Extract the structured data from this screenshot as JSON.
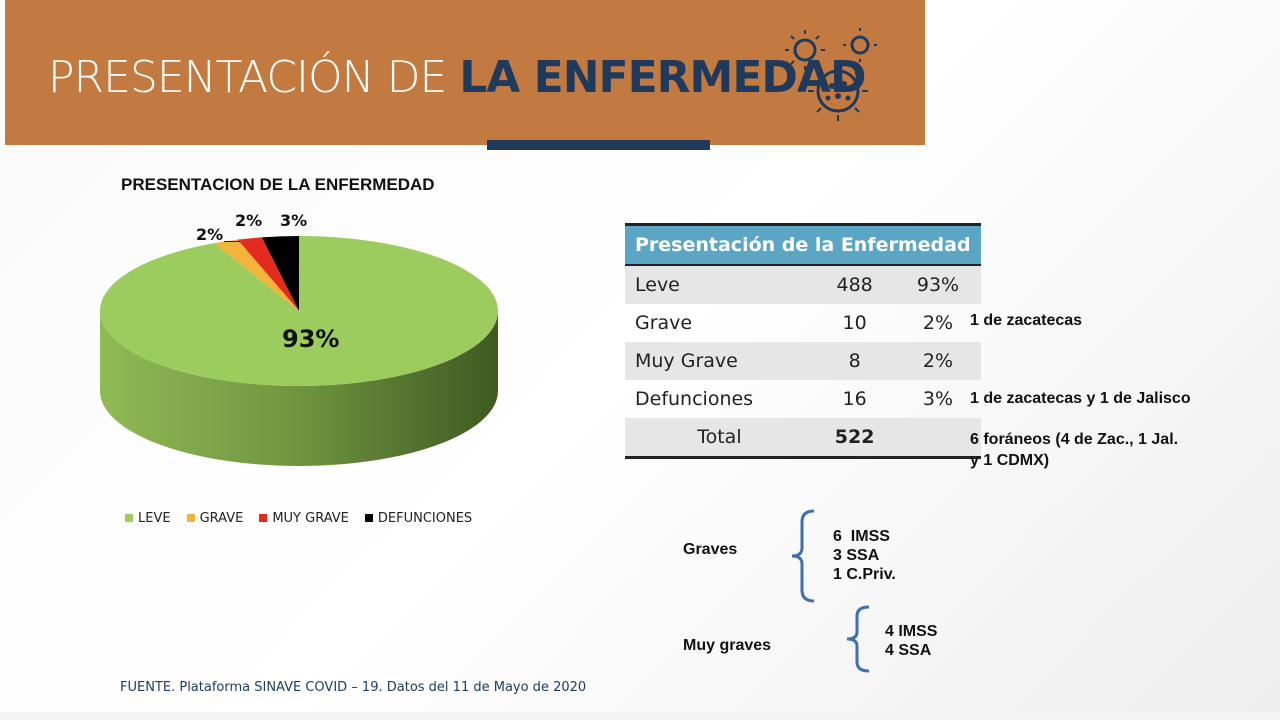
{
  "header": {
    "title_light": "PRESENTACIÓN DE ",
    "title_bold": "LA ENFERMEDAD"
  },
  "chart_data": {
    "type": "pie",
    "title": "PRESENTACION DE LA ENFERMEDAD",
    "categories": [
      "LEVE",
      "GRAVE",
      "MUY GRAVE",
      "DEFUNCIONES"
    ],
    "values": [
      93,
      2,
      2,
      3
    ],
    "labels": [
      "93%",
      "2%",
      "2%",
      "3%"
    ],
    "colors": [
      "#9dcc5e",
      "#f2b43a",
      "#e32b1f",
      "#000000"
    ],
    "legend": "bottom"
  },
  "table": {
    "header": "Presentación de la Enfermedad",
    "rows": [
      {
        "label": "Leve",
        "count": "488",
        "pct": "93%",
        "note": ""
      },
      {
        "label": "Grave",
        "count": "10",
        "pct": "2%",
        "note": "1 de zacatecas"
      },
      {
        "label": "Muy Grave",
        "count": "8",
        "pct": "2%",
        "note": ""
      },
      {
        "label": "Defunciones",
        "count": "16",
        "pct": "3%",
        "note": "1 de zacatecas y 1 de Jalisco"
      }
    ],
    "total": {
      "label": "Total",
      "count": "522",
      "note_line1": "6 foráneos (4 de Zac., 1 Jal.",
      "note_line2": "y 1 CDMX)"
    }
  },
  "graves": {
    "label": "Graves",
    "items": [
      "6  IMSS",
      "3 SSA",
      "1 C.Priv."
    ]
  },
  "muy_graves": {
    "label": "Muy graves",
    "items": [
      "4 IMSS",
      "4 SSA"
    ]
  },
  "source": "FUENTE. Plataforma SINAVE COVID – 19. Datos del 11 de Mayo de 2020"
}
